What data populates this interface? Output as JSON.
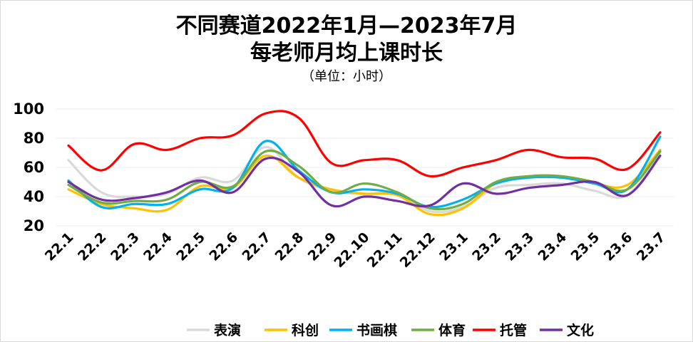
{
  "chart_data": {
    "type": "line",
    "title_line1": "不同赛道2022年1月—2023年7月",
    "title_line2": "每老师月均上课时长",
    "subtitle": "（单位：小时）",
    "ylim": [
      20,
      100
    ],
    "yticks": [
      "20",
      "40",
      "60",
      "80",
      "100"
    ],
    "grid": true,
    "legend_position": "bottom",
    "categories": [
      "22.1",
      "22.2",
      "22.3",
      "22.4",
      "22.5",
      "22.6",
      "22.7",
      "22.8",
      "22.9",
      "22.10",
      "22.11",
      "22.12",
      "23.1",
      "23.2",
      "23.3",
      "23.4",
      "23.5",
      "23.6",
      "23.7"
    ],
    "series": [
      {
        "name": "表演",
        "color": "#d9d9d9",
        "values": [
          65,
          43,
          40,
          42,
          53,
          51,
          74,
          53,
          44,
          42,
          42,
          30,
          33,
          46,
          48,
          49,
          44,
          41,
          70
        ]
      },
      {
        "name": "科创",
        "color": "#ffc000",
        "values": [
          45,
          35,
          32,
          31,
          47,
          46,
          68,
          53,
          45,
          42,
          41,
          28,
          32,
          49,
          54,
          54,
          49,
          48,
          72
        ]
      },
      {
        "name": "书画棋",
        "color": "#00b0f0",
        "values": [
          51,
          33,
          35,
          35,
          45,
          46,
          78,
          58,
          43,
          45,
          42,
          33,
          38,
          49,
          53,
          53,
          49,
          45,
          81
        ]
      },
      {
        "name": "体育",
        "color": "#70ad47",
        "values": [
          48,
          36,
          37,
          38,
          50,
          47,
          71,
          61,
          43,
          49,
          43,
          32,
          35,
          50,
          54,
          54,
          50,
          45,
          71
        ]
      },
      {
        "name": "托管",
        "color": "#ff0000",
        "values": [
          75,
          58,
          76,
          72,
          80,
          82,
          97,
          94,
          63,
          65,
          65,
          54,
          60,
          65,
          72,
          67,
          66,
          59,
          84
        ]
      },
      {
        "name": "文化",
        "color": "#7030a0",
        "values": [
          50,
          38,
          39,
          43,
          51,
          43,
          66,
          57,
          34,
          40,
          37,
          34,
          49,
          42,
          46,
          48,
          50,
          41,
          68
        ]
      }
    ]
  }
}
